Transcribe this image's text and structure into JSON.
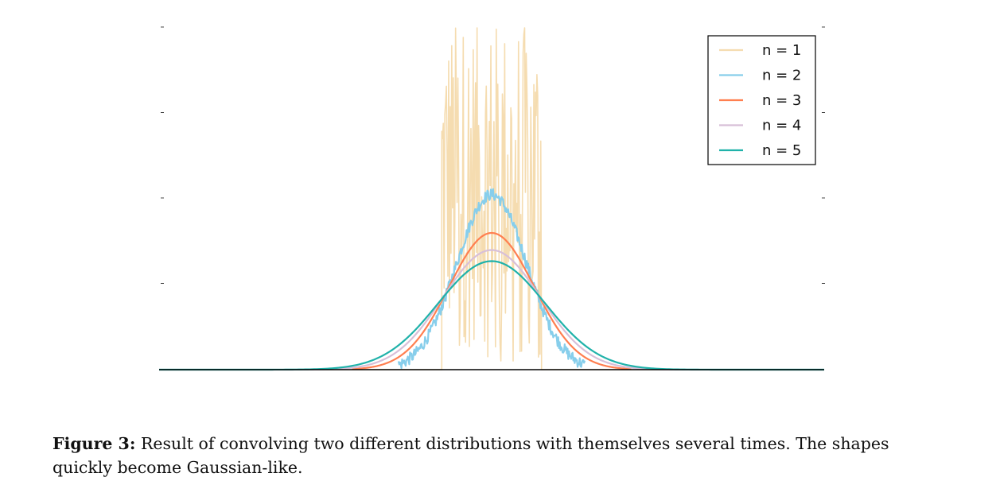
{
  "caption": {
    "label": "Figure 3:",
    "text": "Result of convolving two different distributions with themselves several times. The shapes quickly become Gaussian-like."
  },
  "chart_data": {
    "type": "line",
    "title": "",
    "xlabel": "",
    "ylabel": "",
    "xlim": [
      -1,
      1
    ],
    "ylim": [
      0,
      4
    ],
    "grid": false,
    "legend_position": "top-right",
    "series": [
      {
        "name": "n = 1",
        "color": "#f5dcb0",
        "kind": "noisy_uniform",
        "support": [
          -0.15,
          0.15
        ],
        "mean_height": 2.2,
        "max_height": 4.0
      },
      {
        "name": "n = 2",
        "color": "#87ceeb",
        "kind": "noisy_gaussian",
        "mean": 0.0,
        "sd": 0.105,
        "peak": 2.05,
        "support": [
          -0.28,
          0.28
        ]
      },
      {
        "name": "n = 3",
        "color": "#ff7f50",
        "kind": "gaussian",
        "mean": 0.0,
        "sd": 0.128,
        "peak": 1.6,
        "support": [
          -0.42,
          0.42
        ]
      },
      {
        "name": "n = 4",
        "color": "#d8bfd8",
        "kind": "gaussian",
        "mean": 0.0,
        "sd": 0.146,
        "peak": 1.4
      },
      {
        "name": "n = 5",
        "color": "#20b2aa",
        "kind": "gaussian",
        "mean": 0.0,
        "sd": 0.162,
        "peak": 1.27
      }
    ]
  }
}
